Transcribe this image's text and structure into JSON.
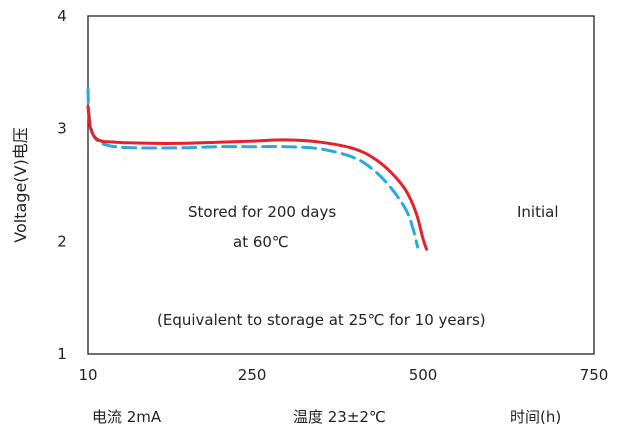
{
  "chart_data": {
    "type": "line",
    "ylabel": "Voltage(V)电压",
    "xlim": [
      10,
      750
    ],
    "ylim": [
      1,
      4
    ],
    "x_ticks": [
      "10",
      "250",
      "500",
      "750"
    ],
    "y_ticks": [
      "1",
      "2",
      "3",
      "4"
    ],
    "grid": false,
    "series": [
      {
        "name": "Initial",
        "color": "#e8202a",
        "style": "solid",
        "points": [
          [
            10,
            3.2
          ],
          [
            14,
            3.0
          ],
          [
            25,
            2.9
          ],
          [
            50,
            2.88
          ],
          [
            100,
            2.87
          ],
          [
            150,
            2.87
          ],
          [
            200,
            2.88
          ],
          [
            250,
            2.89
          ],
          [
            300,
            2.9
          ],
          [
            350,
            2.88
          ],
          [
            400,
            2.82
          ],
          [
            430,
            2.73
          ],
          [
            455,
            2.6
          ],
          [
            475,
            2.45
          ],
          [
            490,
            2.25
          ],
          [
            500,
            2.02
          ],
          [
            505,
            1.93
          ]
        ]
      },
      {
        "name": "Stored for 200 days at 60℃",
        "color": "#2aa8e0",
        "style": "dashed",
        "points": [
          [
            10,
            3.35
          ],
          [
            12,
            3.1
          ],
          [
            20,
            2.92
          ],
          [
            40,
            2.85
          ],
          [
            80,
            2.83
          ],
          [
            150,
            2.83
          ],
          [
            200,
            2.84
          ],
          [
            250,
            2.84
          ],
          [
            300,
            2.84
          ],
          [
            350,
            2.82
          ],
          [
            400,
            2.74
          ],
          [
            430,
            2.62
          ],
          [
            455,
            2.46
          ],
          [
            475,
            2.28
          ],
          [
            485,
            2.12
          ],
          [
            492,
            1.95
          ]
        ]
      }
    ],
    "annotations": {
      "stored_line1": "Stored for 200 days",
      "stored_line2": "at 60℃",
      "initial": "Initial",
      "equivalent": "(Equivalent to storage at 25℃ for 10 years)"
    },
    "footer": {
      "current": "电流  2mA",
      "temperature": "温度  23±2℃",
      "time_label": "时间(h)"
    }
  }
}
